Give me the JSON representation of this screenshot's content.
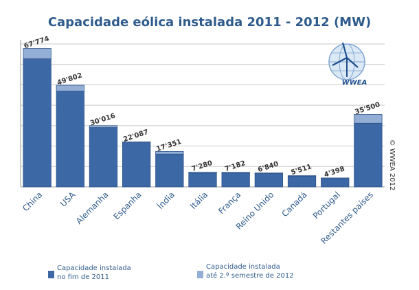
{
  "chart_data": {
    "type": "bar",
    "stacked": true,
    "title": "Capacidade eólica instalada 2011 - 2012 (MW)",
    "categories": [
      "China",
      "USA",
      "Alemanha",
      "Espanha",
      "Índia",
      "Itália",
      "França",
      "Reino Unido",
      "Canadá",
      "Portugal",
      "Restantes países"
    ],
    "totals_labels": [
      "67'774",
      "49'802",
      "30'016",
      "22'087",
      "17'351",
      "7'280",
      "7'182",
      "6'840",
      "5'511",
      "4'398",
      "35'500"
    ],
    "series": [
      {
        "name": "Capacidade instalada no fim de 2011",
        "color": "#3d68a6",
        "values": [
          62733,
          46919,
          29060,
          21674,
          16084,
          6747,
          6800,
          6540,
          5265,
          4083,
          31200
        ]
      },
      {
        "name": "Capacidade instalada até 2.º semestre de 2012",
        "color": "#93afd6",
        "values": [
          5041,
          2883,
          956,
          413,
          1267,
          533,
          382,
          300,
          246,
          315,
          4300
        ]
      }
    ],
    "ylim": [
      0,
      72000
    ],
    "grid": true,
    "legend": "bottom",
    "xlabel": "",
    "ylabel": ""
  },
  "legend_items": [
    {
      "line1": "Capacidade instalada",
      "line2": "no fim de 2011"
    },
    {
      "line1": "Capacidade instalada",
      "line2": "até 2.º semestre de 2012"
    }
  ],
  "copyright": "© WWEA 2012",
  "logo_text": "WWEA"
}
